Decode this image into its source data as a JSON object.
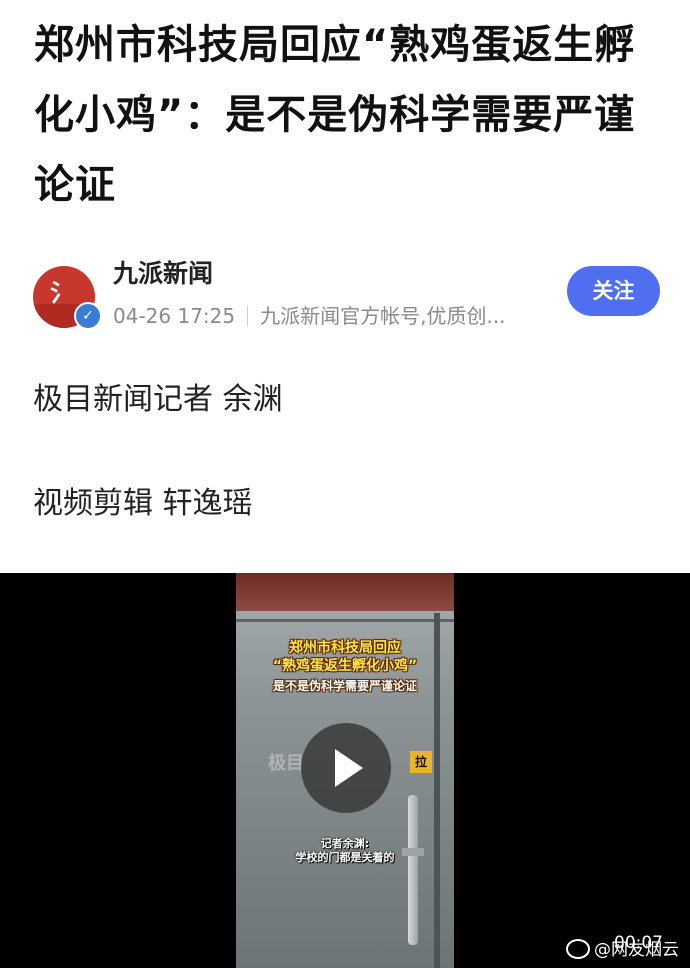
{
  "article": {
    "title": "郑州市科技局回应“熟鸡蛋返生孵化小鸡”：是不是伪科学需要严谨论证"
  },
  "author": {
    "name": "九派新闻",
    "date": "04-26 17:25",
    "description": "九派新闻官方帐号,优质创...",
    "follow_label": "关注",
    "avatar_icon": "jiupai-logo",
    "badge_icon": "verified-check-icon",
    "brand_color": "#c8372d",
    "follow_color": "#4f6ef0"
  },
  "bylines": {
    "reporter": "极目新闻记者 余渊",
    "editor": "视频剪辑 轩逸瑶"
  },
  "video": {
    "caption_line1": "郑州市科技局回应",
    "caption_line2": "“熟鸡蛋返生孵化小鸡”",
    "caption_line3": "是不是伪科学需要严谨论证",
    "subtitle_line1": "记者余渊:",
    "subtitle_line2": "学校的门都是关着的",
    "pull_sign": "拉",
    "time": "00:07",
    "play_icon": "play-icon"
  },
  "watermark": {
    "text": "@网友烟云"
  }
}
